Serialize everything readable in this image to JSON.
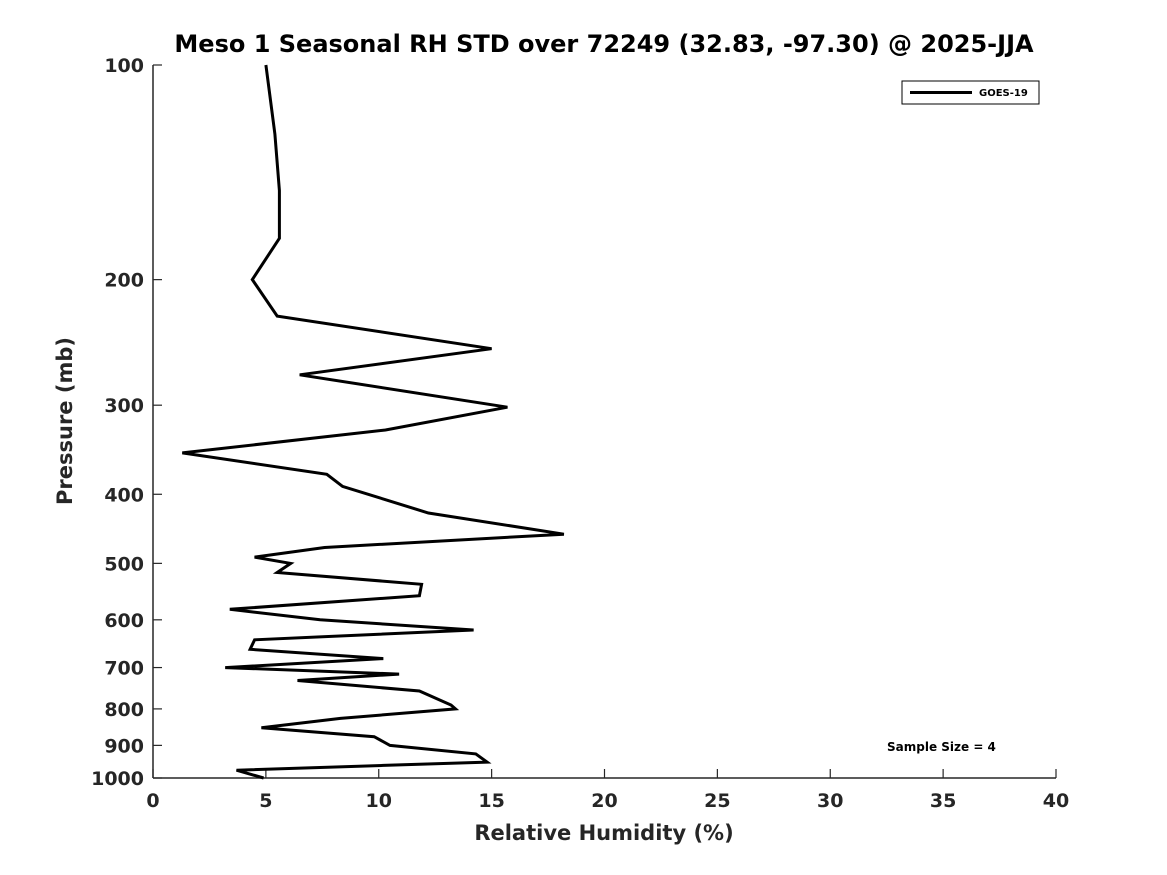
{
  "chart_data": {
    "type": "line",
    "title": "Meso 1 Seasonal RH STD over 72249 (32.83, -97.30) @ 2025-JJA",
    "xlabel": "Relative Humidity (%)",
    "ylabel": "Pressure (mb)",
    "xlim": [
      0,
      40
    ],
    "ylim": [
      100,
      1000
    ],
    "y_scale": "log",
    "y_reversed": true,
    "x_ticks": [
      0,
      5,
      10,
      15,
      20,
      25,
      30,
      35,
      40
    ],
    "x_tick_labels": [
      "0",
      "5",
      "10",
      "15",
      "20",
      "25",
      "30",
      "35",
      "40"
    ],
    "y_ticks": [
      100,
      200,
      300,
      400,
      500,
      600,
      700,
      800,
      900,
      1000
    ],
    "y_tick_labels": [
      "100",
      "200",
      "300",
      "400",
      "500",
      "600",
      "700",
      "800",
      "900",
      "1000"
    ],
    "grid": false,
    "legend": {
      "position": "top-right",
      "entries": [
        "GOES-19"
      ]
    },
    "annotation": "Sample Size = 4",
    "series": [
      {
        "name": "GOES-19",
        "color": "#000000",
        "x": [
          5.0,
          5.4,
          5.6,
          5.6,
          4.4,
          5.5,
          15.0,
          6.5,
          15.7,
          10.3,
          1.3,
          7.7,
          8.4,
          12.2,
          18.2,
          7.6,
          4.5,
          6.1,
          5.5,
          11.9,
          11.8,
          3.4,
          7.4,
          14.2,
          4.5,
          4.3,
          10.2,
          3.2,
          10.9,
          6.4,
          11.8,
          13.2,
          13.4,
          8.3,
          4.8,
          9.8,
          10.5,
          14.3,
          14.8,
          10.2,
          3.7,
          4.9
        ],
        "y": [
          100,
          125,
          150,
          175,
          200,
          225,
          250,
          272,
          302,
          325,
          350,
          375,
          390,
          425,
          455,
          475,
          490,
          500,
          515,
          535,
          555,
          580,
          600,
          620,
          640,
          660,
          680,
          700,
          715,
          730,
          755,
          790,
          800,
          825,
          850,
          875,
          900,
          925,
          950,
          960,
          975,
          1000
        ]
      }
    ]
  }
}
